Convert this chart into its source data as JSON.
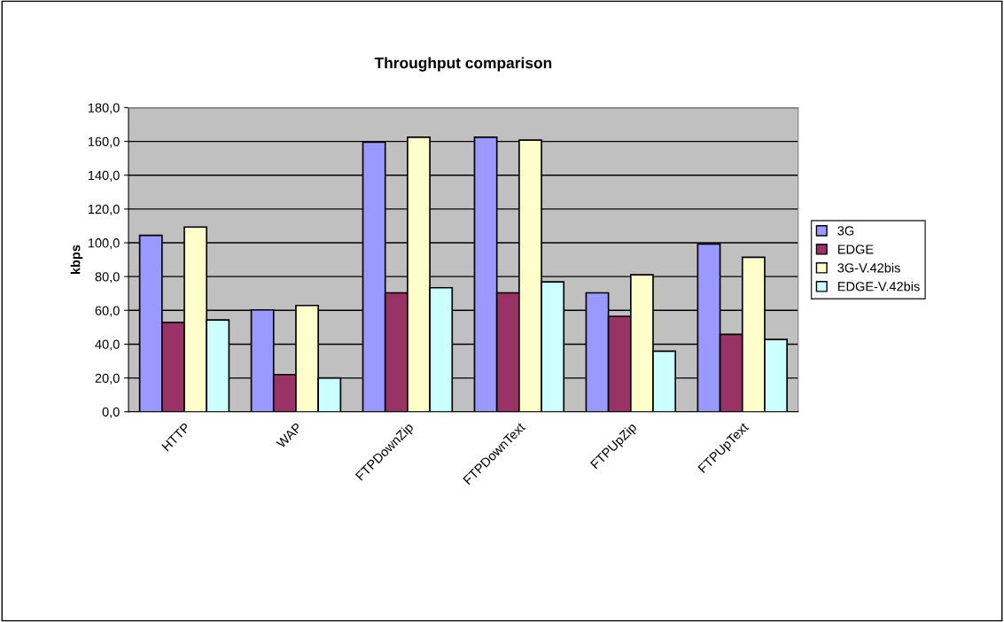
{
  "chart_data": {
    "type": "bar",
    "title": "Throughput comparison",
    "ylabel": "kbps",
    "categories": [
      "HTTP",
      "WAP",
      "FTPDownZip",
      "FTPDownText",
      "FTPUpZip",
      "FTPUpText"
    ],
    "series": [
      {
        "name": "3G",
        "color": "#9999ff",
        "values": [
          104.4,
          60.3,
          159.6,
          162.5,
          70.4,
          99.3
        ]
      },
      {
        "name": "EDGE",
        "color": "#993366",
        "values": [
          52.9,
          22.0,
          70.4,
          70.4,
          56.5,
          45.8
        ]
      },
      {
        "name": "3G-V.42bis",
        "color": "#ffffcc",
        "values": [
          109.3,
          62.9,
          162.5,
          160.8,
          81.1,
          91.4
        ]
      },
      {
        "name": "EDGE-V.42bis",
        "color": "#ccffff",
        "values": [
          54.3,
          20.0,
          73.4,
          76.9,
          35.8,
          42.8
        ]
      }
    ],
    "ylim": [
      0,
      180
    ],
    "yticks": [
      {
        "value": 0,
        "label": "0,0"
      },
      {
        "value": 20,
        "label": "20,0"
      },
      {
        "value": 40,
        "label": "40,0"
      },
      {
        "value": 60,
        "label": "60,0"
      },
      {
        "value": 80,
        "label": "80,0"
      },
      {
        "value": 100,
        "label": "100,0"
      },
      {
        "value": 120,
        "label": "120,0"
      },
      {
        "value": 140,
        "label": "140,0"
      },
      {
        "value": 160,
        "label": "160,0"
      },
      {
        "value": 180,
        "label": "180,0"
      }
    ],
    "grid": "y",
    "legend": "right"
  }
}
